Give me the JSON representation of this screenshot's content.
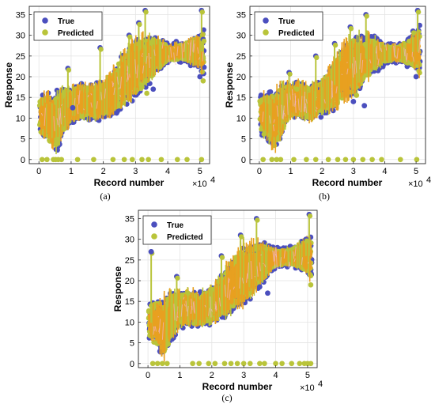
{
  "colors": {
    "true": "#4b4fbe",
    "predicted": "#b9c43a",
    "band": "#e8a020",
    "band_light": "#d9b850",
    "pink": "#f2b6c6"
  },
  "chart_data": [
    {
      "type": "scatter",
      "panel_label": "(a)",
      "xlabel": "Record number",
      "ylabel": "Response",
      "x_exponent_label": "×10",
      "x_exponent_power": "4",
      "xlim": [
        -0.3,
        5.3
      ],
      "ylim": [
        -1,
        37
      ],
      "xticks": [
        0,
        1,
        2,
        3,
        4,
        5
      ],
      "yticks": [
        0,
        5,
        10,
        15,
        20,
        25,
        30,
        35
      ],
      "legend": "top-left",
      "series": [
        {
          "name": "True",
          "key": "true"
        },
        {
          "name": "Predicted",
          "key": "predicted"
        }
      ],
      "trend": [
        [
          0,
          10.5
        ],
        [
          0.3,
          10
        ],
        [
          0.5,
          9
        ],
        [
          0.8,
          12
        ],
        [
          1.0,
          13
        ],
        [
          1.3,
          14
        ],
        [
          1.6,
          13.5
        ],
        [
          2.0,
          14.5
        ],
        [
          2.4,
          17
        ],
        [
          2.7,
          20
        ],
        [
          3.0,
          22
        ],
        [
          3.3,
          23.5
        ],
        [
          3.6,
          25
        ],
        [
          4.0,
          25.8
        ],
        [
          4.5,
          26
        ],
        [
          5.0,
          26.2
        ],
        [
          5.1,
          26
        ]
      ],
      "spread": [
        [
          0,
          4
        ],
        [
          0.5,
          7
        ],
        [
          1,
          4
        ],
        [
          2,
          4
        ],
        [
          2.5,
          6
        ],
        [
          3,
          7
        ],
        [
          3.5,
          5
        ],
        [
          4,
          2
        ],
        [
          4.5,
          2
        ],
        [
          5,
          4
        ],
        [
          5.1,
          6
        ]
      ],
      "zero_points": [
        0.1,
        0.25,
        0.45,
        0.52,
        0.6,
        0.7,
        1.2,
        1.7,
        2.3,
        2.65,
        2.9,
        3.2,
        3.4,
        3.8,
        4.3,
        4.6,
        5.05
      ],
      "spikes": [
        [
          3.3,
          36
        ],
        [
          5.05,
          36
        ],
        [
          3.1,
          33
        ],
        [
          2.8,
          30
        ],
        [
          1.9,
          27
        ],
        [
          0.9,
          22
        ],
        [
          5.1,
          29
        ]
      ],
      "outliers_true": [
        [
          3.55,
          17
        ],
        [
          5.0,
          20
        ],
        [
          1.05,
          12.5
        ]
      ],
      "outliers_pred": [
        [
          5.1,
          19
        ],
        [
          3.35,
          16
        ]
      ]
    },
    {
      "type": "scatter",
      "panel_label": "(b)",
      "xlabel": "Record number",
      "ylabel": "Response",
      "x_exponent_label": "×10",
      "x_exponent_power": "4",
      "xlim": [
        -0.3,
        5.3
      ],
      "ylim": [
        -1,
        37
      ],
      "xticks": [
        0,
        1,
        2,
        3,
        4,
        5
      ],
      "yticks": [
        0,
        5,
        10,
        15,
        20,
        25,
        30,
        35
      ],
      "legend": "top-left",
      "series": [
        {
          "name": "True",
          "key": "true"
        },
        {
          "name": "Predicted",
          "key": "predicted"
        }
      ],
      "trend": [
        [
          0,
          11
        ],
        [
          0.3,
          10
        ],
        [
          0.5,
          9.5
        ],
        [
          0.8,
          13
        ],
        [
          1.0,
          14
        ],
        [
          1.3,
          14.5
        ],
        [
          1.6,
          13.5
        ],
        [
          2.0,
          15
        ],
        [
          2.4,
          18
        ],
        [
          2.7,
          21
        ],
        [
          3.0,
          22.5
        ],
        [
          3.3,
          24
        ],
        [
          3.6,
          25
        ],
        [
          4.0,
          25.5
        ],
        [
          4.5,
          25.8
        ],
        [
          5.0,
          26
        ],
        [
          5.1,
          26
        ]
      ],
      "spread": [
        [
          0,
          4
        ],
        [
          0.5,
          7
        ],
        [
          1,
          4
        ],
        [
          2,
          4
        ],
        [
          2.5,
          6
        ],
        [
          3,
          7
        ],
        [
          3.5,
          5
        ],
        [
          4,
          2
        ],
        [
          4.5,
          2
        ],
        [
          5,
          4
        ],
        [
          5.1,
          6
        ]
      ],
      "zero_points": [
        0.12,
        0.4,
        0.55,
        0.68,
        1.1,
        1.5,
        1.8,
        2.2,
        2.5,
        2.75,
        3.0,
        3.3,
        3.6,
        3.9,
        4.5,
        5.02
      ],
      "spikes": [
        [
          3.4,
          35
        ],
        [
          5.05,
          36
        ],
        [
          2.9,
          32
        ],
        [
          2.4,
          28
        ],
        [
          1.8,
          25
        ],
        [
          0.95,
          21
        ],
        [
          4.9,
          31
        ]
      ],
      "outliers_true": [
        [
          3.0,
          14
        ],
        [
          3.35,
          13
        ],
        [
          5.0,
          20
        ]
      ],
      "outliers_pred": [
        [
          1.2,
          17
        ],
        [
          3.1,
          15.5
        ]
      ]
    },
    {
      "type": "scatter",
      "panel_label": "(c)",
      "xlabel": "Record number",
      "ylabel": "Response",
      "x_exponent_label": "×10",
      "x_exponent_power": "4",
      "xlim": [
        -0.3,
        5.3
      ],
      "ylim": [
        -1,
        37
      ],
      "xticks": [
        0,
        1,
        2,
        3,
        4,
        5
      ],
      "yticks": [
        0,
        5,
        10,
        15,
        20,
        25,
        30,
        35
      ],
      "legend": "top-left",
      "series": [
        {
          "name": "True",
          "key": "true"
        },
        {
          "name": "Predicted",
          "key": "predicted"
        }
      ],
      "trend": [
        [
          0,
          10
        ],
        [
          0.3,
          9.5
        ],
        [
          0.5,
          8.5
        ],
        [
          0.8,
          12
        ],
        [
          1.0,
          13
        ],
        [
          1.3,
          13.5
        ],
        [
          1.6,
          13
        ],
        [
          2.0,
          14
        ],
        [
          2.4,
          17
        ],
        [
          2.7,
          19.5
        ],
        [
          3.0,
          21.5
        ],
        [
          3.3,
          23
        ],
        [
          3.6,
          24.5
        ],
        [
          4.0,
          25.5
        ],
        [
          4.5,
          25.8
        ],
        [
          5.0,
          26
        ],
        [
          5.1,
          26
        ]
      ],
      "spread": [
        [
          0,
          4
        ],
        [
          0.5,
          7
        ],
        [
          1,
          4
        ],
        [
          2,
          4
        ],
        [
          2.5,
          6
        ],
        [
          3,
          7
        ],
        [
          3.5,
          5
        ],
        [
          4,
          2
        ],
        [
          4.5,
          2
        ],
        [
          5,
          4
        ],
        [
          5.1,
          6
        ]
      ],
      "zero_points": [
        0.15,
        0.3,
        0.45,
        0.6,
        1.4,
        1.6,
        1.9,
        2.1,
        2.4,
        2.6,
        2.8,
        3.0,
        3.2,
        3.5,
        3.65,
        4.0,
        4.2,
        4.5,
        4.75,
        4.9,
        5.0,
        5.1
      ],
      "spikes": [
        [
          3.4,
          35
        ],
        [
          5.05,
          36
        ],
        [
          0.1,
          27
        ],
        [
          2.9,
          31
        ],
        [
          2.3,
          26
        ],
        [
          0.9,
          21
        ],
        [
          4.95,
          30
        ]
      ],
      "outliers_true": [
        [
          3.75,
          17
        ],
        [
          3.5,
          18.5
        ],
        [
          0.1,
          27
        ]
      ],
      "outliers_pred": [
        [
          1.25,
          17
        ],
        [
          5.1,
          19
        ]
      ]
    }
  ]
}
